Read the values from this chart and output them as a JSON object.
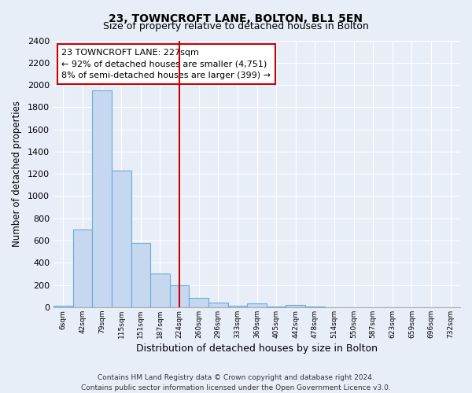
{
  "title": "23, TOWNCROFT LANE, BOLTON, BL1 5EN",
  "subtitle": "Size of property relative to detached houses in Bolton",
  "xlabel": "Distribution of detached houses by size in Bolton",
  "ylabel": "Number of detached properties",
  "bar_labels": [
    "6sqm",
    "42sqm",
    "79sqm",
    "115sqm",
    "151sqm",
    "187sqm",
    "224sqm",
    "260sqm",
    "296sqm",
    "333sqm",
    "369sqm",
    "405sqm",
    "442sqm",
    "478sqm",
    "514sqm",
    "550sqm",
    "587sqm",
    "623sqm",
    "659sqm",
    "696sqm",
    "732sqm"
  ],
  "bar_values": [
    15,
    700,
    1950,
    1230,
    580,
    305,
    200,
    85,
    45,
    10,
    35,
    5,
    20,
    5,
    0,
    0,
    0,
    0,
    0,
    0,
    0
  ],
  "bar_color": "#c5d8f0",
  "bar_edge_color": "#6aaad4",
  "vline_x_index": 6,
  "vline_color": "#cc0000",
  "ylim": [
    0,
    2400
  ],
  "yticks": [
    0,
    200,
    400,
    600,
    800,
    1000,
    1200,
    1400,
    1600,
    1800,
    2000,
    2200,
    2400
  ],
  "annotation_title": "23 TOWNCROFT LANE: 227sqm",
  "annotation_line1": "← 92% of detached houses are smaller (4,751)",
  "annotation_line2": "8% of semi-detached houses are larger (399) →",
  "annotation_box_facecolor": "#ffffff",
  "annotation_box_edgecolor": "#cc0000",
  "footer_line1": "Contains HM Land Registry data © Crown copyright and database right 2024.",
  "footer_line2": "Contains public sector information licensed under the Open Government Licence v3.0.",
  "background_color": "#e8eef8",
  "plot_bg_color": "#e8eef8",
  "grid_color": "#ffffff",
  "spine_color": "#aaaaaa"
}
